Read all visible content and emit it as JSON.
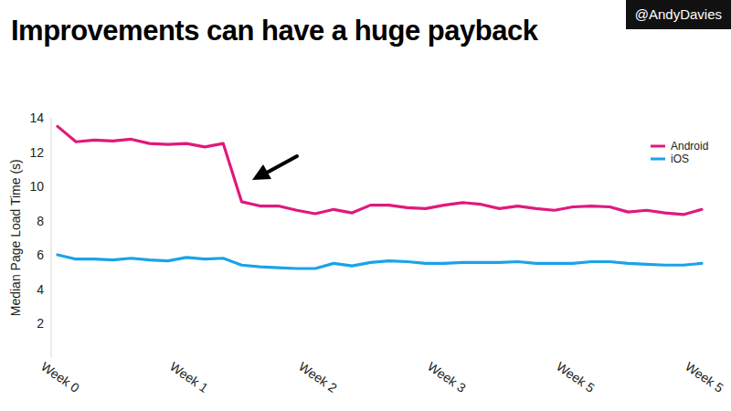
{
  "chart_data": {
    "type": "line",
    "title": "Improvements can have a huge payback",
    "subtitle": "@AndyDavies",
    "y_label": "Median Page Load Time (s)",
    "categories": [
      "Week 0",
      null,
      null,
      null,
      null,
      null,
      null,
      "Week 1",
      null,
      null,
      null,
      null,
      null,
      null,
      "Week 2",
      null,
      null,
      null,
      null,
      null,
      null,
      "Week 3",
      null,
      null,
      null,
      null,
      null,
      null,
      "Week 5",
      null,
      null,
      null,
      null,
      null,
      null,
      "Week 5"
    ],
    "series": [
      {
        "name": "Android",
        "color": "#e0197d",
        "values": [
          13.5,
          12.6,
          12.7,
          12.65,
          12.75,
          12.5,
          12.45,
          12.5,
          12.3,
          12.5,
          9.1,
          8.85,
          8.85,
          8.6,
          8.4,
          8.65,
          8.45,
          8.9,
          8.9,
          8.75,
          8.7,
          8.9,
          9.05,
          8.95,
          8.7,
          8.85,
          8.7,
          8.6,
          8.8,
          8.85,
          8.8,
          8.5,
          8.6,
          8.45,
          8.35,
          8.65
        ]
      },
      {
        "name": "iOS",
        "color": "#1aa3e8",
        "values": [
          6.0,
          5.75,
          5.75,
          5.7,
          5.8,
          5.7,
          5.65,
          5.85,
          5.75,
          5.8,
          5.4,
          5.3,
          5.25,
          5.2,
          5.2,
          5.5,
          5.35,
          5.55,
          5.65,
          5.6,
          5.5,
          5.5,
          5.55,
          5.55,
          5.55,
          5.6,
          5.5,
          5.5,
          5.5,
          5.6,
          5.6,
          5.5,
          5.45,
          5.4,
          5.4,
          5.5
        ]
      }
    ],
    "ylim": [
      0,
      14
    ],
    "yticks": [
      2,
      4,
      6,
      8,
      10,
      12,
      14
    ],
    "grid": false,
    "legend": "top-right"
  }
}
